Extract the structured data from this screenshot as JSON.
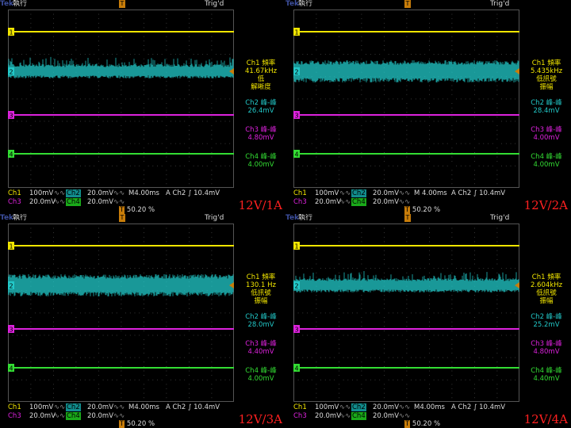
{
  "colors": {
    "ch1": "#f2e600",
    "ch2": "#22c8c8",
    "ch3": "#dd22dd",
    "ch4": "#33dd33",
    "trigger": "#c87d0a",
    "caption": "#ff2020"
  },
  "panels": [
    {
      "brand": "Tek",
      "state": "執行",
      "trig_state": "Trig'd",
      "trig_marker": "T",
      "ch1_label": "Ch1 頻率",
      "ch1_freq": "41.67kHz",
      "ch1_note1": "低",
      "ch1_note2": "解晰度",
      "ch2_label": "Ch2 峰-峰",
      "ch2_value": "26.4mV",
      "ch3_label": "Ch3 峰-峰",
      "ch3_value": "4.80mV",
      "ch4_label": "Ch4 峰-峰",
      "ch4_value": "4.00mV",
      "ch1_scale": "Ch1",
      "ch1_volts": "100mV",
      "ch2_scale": "Ch2",
      "ch2_volts": "20.0mV",
      "timebase": "M4.00ms",
      "trig_src": "A  Ch2  ∫  10.4mV",
      "ch3_scale": "Ch3",
      "ch3_volts": "20.0mV",
      "ch4_scale": "Ch4",
      "ch4_volts": "20.0mV",
      "trig_pos": "50.20 %",
      "caption": "12V/1A",
      "noise_style": "spiky"
    },
    {
      "brand": "Tek",
      "state": "執行",
      "trig_state": "Trig'd",
      "trig_marker": "T",
      "ch1_label": "Ch1 頻率",
      "ch1_freq": "5.435kHz",
      "ch1_note1": "低訊號",
      "ch1_note2": "振幅",
      "ch2_label": "Ch2 峰-峰",
      "ch2_value": "28.4mV",
      "ch3_label": "Ch3 峰-峰",
      "ch3_value": "4.00mV",
      "ch4_label": "Ch4 峰-峰",
      "ch4_value": "4.00mV",
      "ch1_scale": "Ch1",
      "ch1_volts": "100mV",
      "ch2_scale": "Ch2",
      "ch2_volts": "20.0mV",
      "timebase": "M 4.00ms",
      "trig_src": "A  Ch2  ∫  10.4mV",
      "ch3_scale": "Ch3",
      "ch3_volts": "20.0mV",
      "ch4_scale": "Ch4",
      "ch4_volts": "20.0mV",
      "trig_pos": "50.20 %",
      "caption": "12V/2A",
      "noise_style": "band"
    },
    {
      "brand": "Tek",
      "state": "執行",
      "trig_state": "Trig'd",
      "trig_marker": "T",
      "ch1_label": "Ch1 頻率",
      "ch1_freq": "130.1 Hz",
      "ch1_note1": "低訊號",
      "ch1_note2": "振幅",
      "ch2_label": "Ch2 峰-峰",
      "ch2_value": "28.0mV",
      "ch3_label": "Ch3 峰-峰",
      "ch3_value": "4.40mV",
      "ch4_label": "Ch4 峰-峰",
      "ch4_value": "4.00mV",
      "ch1_scale": "Ch1",
      "ch1_volts": "100mV",
      "ch2_scale": "Ch2",
      "ch2_volts": "20.0mV",
      "timebase": "M4.00ms",
      "trig_src": "A  Ch2  ∫  10.4mV",
      "ch3_scale": "Ch3",
      "ch3_volts": "20.0mV",
      "ch4_scale": "Ch4",
      "ch4_volts": "20.0mV",
      "trig_pos": "50.20 %",
      "caption": "12V/3A",
      "noise_style": "band"
    },
    {
      "brand": "Tek",
      "state": "執行",
      "trig_state": "Trig'd",
      "trig_marker": "T",
      "ch1_label": "Ch1 頻率",
      "ch1_freq": "2.604kHz",
      "ch1_note1": "低訊號",
      "ch1_note2": "振幅",
      "ch2_label": "Ch2 峰-峰",
      "ch2_value": "25.2mV",
      "ch3_label": "Ch3 峰-峰",
      "ch3_value": "4.80mV",
      "ch4_label": "Ch4 峰-峰",
      "ch4_value": "4.40mV",
      "ch1_scale": "Ch1",
      "ch1_volts": "100mV",
      "ch2_scale": "Ch2",
      "ch2_volts": "20.0mV",
      "timebase": "M4.00ms",
      "trig_src": "A  Ch2  ∫  10.4mV",
      "ch3_scale": "Ch3",
      "ch3_volts": "20.0mV",
      "ch4_scale": "Ch4",
      "ch4_volts": "20.0mV",
      "trig_pos": "50.20 %",
      "caption": "12V/4A",
      "noise_style": "spiky"
    }
  ]
}
